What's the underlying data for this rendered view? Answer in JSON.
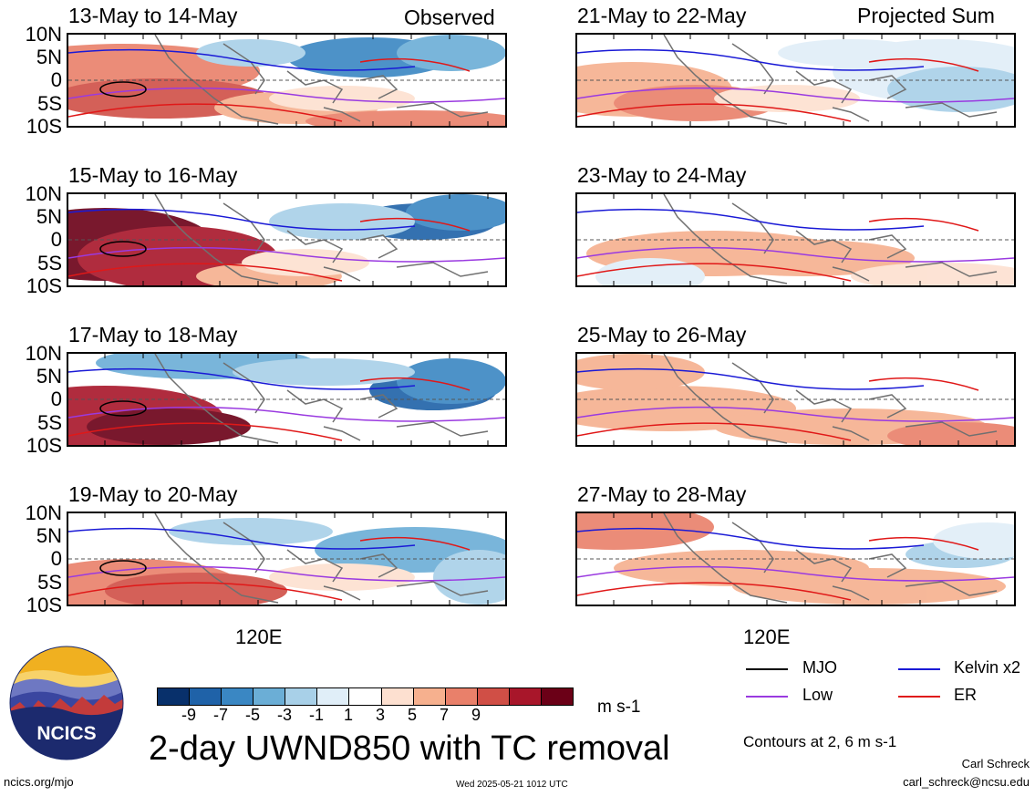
{
  "left_column_label": "Observed",
  "right_column_label": "Projected Sum",
  "panels": [
    {
      "title": "13-May to 14-May"
    },
    {
      "title": "15-May to 16-May"
    },
    {
      "title": "17-May to 18-May"
    },
    {
      "title": "19-May to 20-May"
    },
    {
      "title": "21-May to 22-May"
    },
    {
      "title": "23-May to 24-May"
    },
    {
      "title": "25-May to 26-May"
    },
    {
      "title": "27-May to 28-May"
    }
  ],
  "lat_labels": [
    "10N",
    "5N",
    "0",
    "5S",
    "10S"
  ],
  "lon_label": "120E",
  "colorbar": {
    "unit": "m s-1",
    "labels": [
      "-9",
      "-7",
      "-5",
      "-3",
      "-1",
      "1",
      "3",
      "5",
      "7",
      "9"
    ],
    "colors": [
      "#08306b",
      "#1f62a8",
      "#3a87c3",
      "#6baed6",
      "#a8d0e8",
      "#e0eef8",
      "#ffffff",
      "#fde0d0",
      "#f6b08e",
      "#e9806a",
      "#d04f46",
      "#a8162a",
      "#6b0017"
    ]
  },
  "legend": {
    "mjo": {
      "label": "MJO",
      "color": "#000000"
    },
    "kelvin": {
      "label": "Kelvin x2",
      "color": "#1a1ad6"
    },
    "low": {
      "label": "Low",
      "color": "#9a3ae0"
    },
    "er": {
      "label": "ER",
      "color": "#e01818"
    }
  },
  "contours_note": "Contours at 2, 6 m s-1",
  "main_title": "2-day UWND850 with TC removal",
  "logo_text": "NCICS",
  "footer": {
    "url": "ncics.org/mjo",
    "timestamp": "Wed 2025-05-21 1012 UTC",
    "author": "Carl Schreck",
    "email": "carl_schreck@ncsu.edu"
  }
}
